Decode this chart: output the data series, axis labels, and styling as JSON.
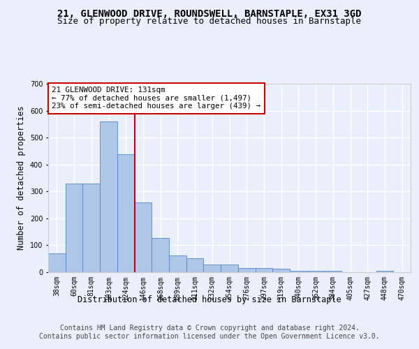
{
  "title1": "21, GLENWOOD DRIVE, ROUNDSWELL, BARNSTAPLE, EX31 3GD",
  "title2": "Size of property relative to detached houses in Barnstaple",
  "xlabel": "Distribution of detached houses by size in Barnstaple",
  "ylabel": "Number of detached properties",
  "categories": [
    "38sqm",
    "60sqm",
    "81sqm",
    "103sqm",
    "124sqm",
    "146sqm",
    "168sqm",
    "189sqm",
    "211sqm",
    "232sqm",
    "254sqm",
    "276sqm",
    "297sqm",
    "319sqm",
    "340sqm",
    "362sqm",
    "384sqm",
    "405sqm",
    "427sqm",
    "448sqm",
    "470sqm"
  ],
  "values": [
    70,
    328,
    328,
    560,
    438,
    258,
    128,
    63,
    53,
    28,
    28,
    16,
    16,
    12,
    4,
    4,
    4,
    0,
    0,
    6,
    0
  ],
  "bar_color": "#aec6e8",
  "bar_edge_color": "#5585c8",
  "vline_x_index": 4,
  "vline_color": "#cc0000",
  "annotation_line1": "21 GLENWOOD DRIVE: 131sqm",
  "annotation_line2": "← 77% of detached houses are smaller (1,497)",
  "annotation_line3": "23% of semi-detached houses are larger (439) →",
  "annotation_box_color": "#ffffff",
  "annotation_box_edge": "#cc0000",
  "ylim": [
    0,
    700
  ],
  "yticks": [
    0,
    100,
    200,
    300,
    400,
    500,
    600,
    700
  ],
  "footer": "Contains HM Land Registry data © Crown copyright and database right 2024.\nContains public sector information licensed under the Open Government Licence v3.0.",
  "bg_color": "#eaf0fb",
  "plot_bg_color": "#eaf0fb",
  "grid_color": "#ffffff",
  "title1_fontsize": 10,
  "title2_fontsize": 9,
  "axis_label_fontsize": 8.5,
  "tick_fontsize": 7,
  "footer_fontsize": 7,
  "annotation_fontsize": 7.8
}
